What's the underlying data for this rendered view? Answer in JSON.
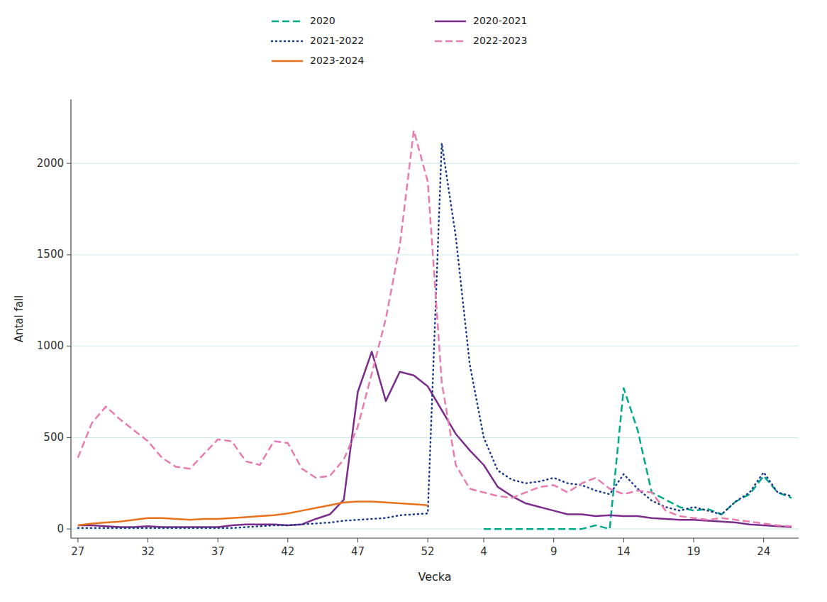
{
  "chart_data": {
    "type": "line",
    "xlabel": "Vecka",
    "ylabel": "Antal fall",
    "categories": [
      "27",
      null,
      null,
      null,
      null,
      "32",
      null,
      null,
      null,
      null,
      "37",
      null,
      null,
      null,
      null,
      "42",
      null,
      null,
      null,
      null,
      "47",
      null,
      null,
      null,
      null,
      "52",
      null,
      null,
      null,
      "4",
      null,
      null,
      null,
      null,
      "9",
      null,
      null,
      null,
      null,
      "14",
      null,
      null,
      null,
      null,
      "19",
      null,
      null,
      null,
      null,
      "24",
      null,
      null
    ],
    "ylim": [
      -50,
      2350
    ],
    "yticks": [
      0,
      500,
      1000,
      1500,
      2000
    ],
    "grid": true,
    "legend": "top",
    "series": [
      {
        "name": "2020",
        "color": "#00aa88",
        "line_style": "dashed",
        "values": [
          null,
          null,
          null,
          null,
          null,
          null,
          null,
          null,
          null,
          null,
          null,
          null,
          null,
          null,
          null,
          null,
          null,
          null,
          null,
          null,
          null,
          null,
          null,
          null,
          null,
          null,
          null,
          null,
          null,
          0,
          0,
          0,
          0,
          0,
          0,
          0,
          0,
          20,
          0,
          770,
          540,
          200,
          160,
          120,
          100,
          110,
          80,
          150,
          190,
          290,
          200,
          170
        ]
      },
      {
        "name": "2020-2021",
        "color": "#7b2d8b",
        "line_style": "solid",
        "values": [
          20,
          20,
          15,
          10,
          10,
          15,
          10,
          10,
          10,
          10,
          10,
          20,
          25,
          25,
          25,
          20,
          25,
          55,
          80,
          160,
          750,
          970,
          700,
          860,
          840,
          780,
          650,
          520,
          430,
          350,
          230,
          180,
          140,
          120,
          100,
          80,
          80,
          70,
          75,
          70,
          70,
          60,
          55,
          50,
          50,
          45,
          40,
          35,
          25,
          20,
          15,
          10
        ]
      },
      {
        "name": "2021-2022",
        "color": "#1a3a8a",
        "line_style": "dotted",
        "values": [
          5,
          5,
          5,
          5,
          5,
          5,
          5,
          5,
          5,
          5,
          5,
          5,
          10,
          15,
          20,
          20,
          25,
          30,
          35,
          45,
          50,
          55,
          60,
          75,
          80,
          85,
          2110,
          1600,
          900,
          500,
          320,
          270,
          250,
          260,
          280,
          250,
          240,
          210,
          190,
          300,
          220,
          155,
          120,
          100,
          120,
          100,
          80,
          150,
          200,
          310,
          200,
          180
        ]
      },
      {
        "name": "2022-2023",
        "color": "#e87cb0",
        "line_style": "dashed",
        "values": [
          390,
          580,
          670,
          600,
          540,
          480,
          390,
          340,
          330,
          410,
          490,
          480,
          370,
          350,
          480,
          470,
          330,
          280,
          290,
          380,
          560,
          850,
          1150,
          1550,
          2180,
          1900,
          800,
          350,
          220,
          200,
          180,
          170,
          200,
          230,
          240,
          200,
          250,
          280,
          220,
          190,
          210,
          200,
          100,
          70,
          60,
          50,
          60,
          50,
          40,
          30,
          20,
          15
        ]
      },
      {
        "name": "2023-2024",
        "color": "#e8721c",
        "line_style": "solid",
        "values": [
          20,
          30,
          35,
          40,
          50,
          60,
          60,
          55,
          50,
          55,
          55,
          60,
          65,
          70,
          75,
          85,
          100,
          115,
          130,
          145,
          150,
          150,
          145,
          140,
          135,
          130,
          null,
          null,
          null,
          null,
          null,
          null,
          null,
          null,
          null,
          null,
          null,
          null,
          null,
          null,
          null,
          null,
          null,
          null,
          null,
          null,
          null,
          null,
          null,
          null,
          null,
          null
        ]
      }
    ]
  }
}
